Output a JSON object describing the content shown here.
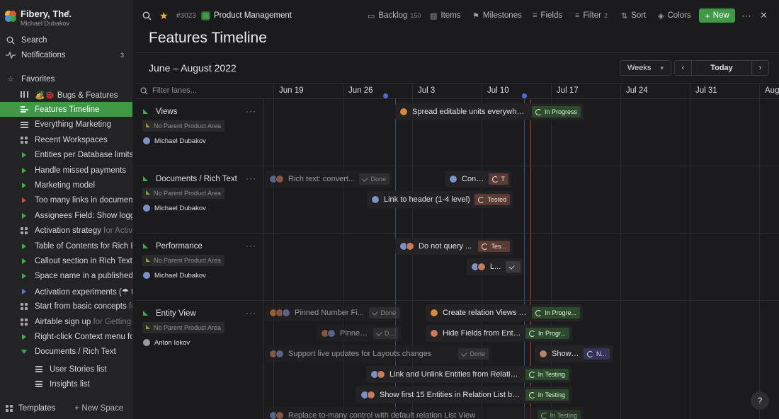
{
  "workspace": {
    "name": "Fibery, The.",
    "user": "Michael Dubakov"
  },
  "sidebar": {
    "search": "Search",
    "notifications": {
      "label": "Notifications",
      "count": "3"
    },
    "favorites": "Favorites",
    "items": [
      {
        "label": "🏕️🐞 Bugs & Features",
        "sub": "",
        "kind": "board"
      },
      {
        "label": "Features Timeline",
        "sub": "",
        "kind": "timeline",
        "active": true
      },
      {
        "label": "Everything Marketing",
        "sub": "",
        "kind": "list"
      },
      {
        "label": "Recent Workspaces",
        "sub": "",
        "kind": "grid"
      },
      {
        "label": "Entities per Database limits",
        "sub": "",
        "kind": "green"
      },
      {
        "label": "Handle missed payments",
        "sub": "",
        "kind": "green"
      },
      {
        "label": "Marketing model",
        "sub": "",
        "kind": "green"
      },
      {
        "label": "Too many links in document c",
        "sub": "",
        "kind": "red"
      },
      {
        "label": "Assignees Field: Show logge",
        "sub": "",
        "kind": "green"
      },
      {
        "label": "Activation strategy",
        "sub": " for Activa",
        "kind": "doc"
      },
      {
        "label": "Table of Contents for Rich Ed",
        "sub": "",
        "kind": "green"
      },
      {
        "label": "Callout section in Rich Text",
        "sub": "",
        "kind": "green"
      },
      {
        "label": "Space name in a published s",
        "sub": "",
        "kind": "green"
      },
      {
        "label": "Activation experiments (☂ ta",
        "sub": "",
        "kind": "blue"
      },
      {
        "label": "Start from basic concepts",
        "sub": " fo",
        "kind": "doc"
      },
      {
        "label": "Airtable sign up",
        "sub": " for Getting s",
        "kind": "doc"
      },
      {
        "label": "Right-click Context menu for",
        "sub": "",
        "kind": "green"
      },
      {
        "label": "Documents / Rich Text",
        "sub": "",
        "kind": "open"
      }
    ],
    "subitems": [
      "User Stories list",
      "Insights list"
    ],
    "templates": "Templates",
    "new_space": "+ New Space"
  },
  "topbar": {
    "id": "#3023",
    "space": "Product Management",
    "backlog": {
      "label": "Backlog",
      "count": "150"
    },
    "items": "Items",
    "milestones": "Milestones",
    "fields": "Fields",
    "filter": {
      "label": "Filter",
      "count": "2"
    },
    "sort": "Sort",
    "colors": "Colors",
    "new": "New"
  },
  "page": {
    "title": "Features Timeline",
    "range": "June – August 2022",
    "scale": "Weeks",
    "today": "Today",
    "filter_placeholder": "Filter lanes..."
  },
  "weeks": [
    "Jun 19",
    "Jun 26",
    "Jul 3",
    "Jul 10",
    "Jul 17",
    "Jul 24",
    "Jul 31",
    "Aug"
  ],
  "lanes": [
    {
      "title": "Views",
      "area": "No Parent Product Area",
      "owner": "Michael Dubakov"
    },
    {
      "title": "Documents / Rich Text",
      "area": "No Parent Product Area",
      "owner": "Michael Dubakov"
    },
    {
      "title": "Performance",
      "area": "No Parent Product Area",
      "owner": "Michael Dubakov"
    },
    {
      "title": "Entity View",
      "area": "No Parent Product Area",
      "owner": "Anton Iokov"
    }
  ],
  "bars": [
    {
      "title": "Spread editable units everywhere",
      "status": "In Progress"
    },
    {
      "title": "Rich text: convert...",
      "status": "Done"
    },
    {
      "title": "Conv...",
      "status": "T"
    },
    {
      "title": "Link to header (1-4 level)",
      "status": "Tested"
    },
    {
      "title": "Do not query ...",
      "status": "Tes..."
    },
    {
      "title": "L...",
      "status": ""
    },
    {
      "title": "Pinned Number Fi...",
      "status": "Done"
    },
    {
      "title": "Create relation Views o...",
      "status": "In Progre..."
    },
    {
      "title": "Pinned ...",
      "status": "D..."
    },
    {
      "title": "Hide Fields from Entit...",
      "status": "In Progr..."
    },
    {
      "title": "Support live updates for Layouts changes",
      "status": "Done"
    },
    {
      "title": "Show B...",
      "status": "N..."
    },
    {
      "title": "Link and Unlink Entities from Relation...",
      "status": "In Testing"
    },
    {
      "title": "Show first 15 Entities in Relation List by ...",
      "status": "In Testing"
    },
    {
      "title": "Replace to-many control with default relation List View",
      "status": "In Testing"
    }
  ],
  "help": "?"
}
